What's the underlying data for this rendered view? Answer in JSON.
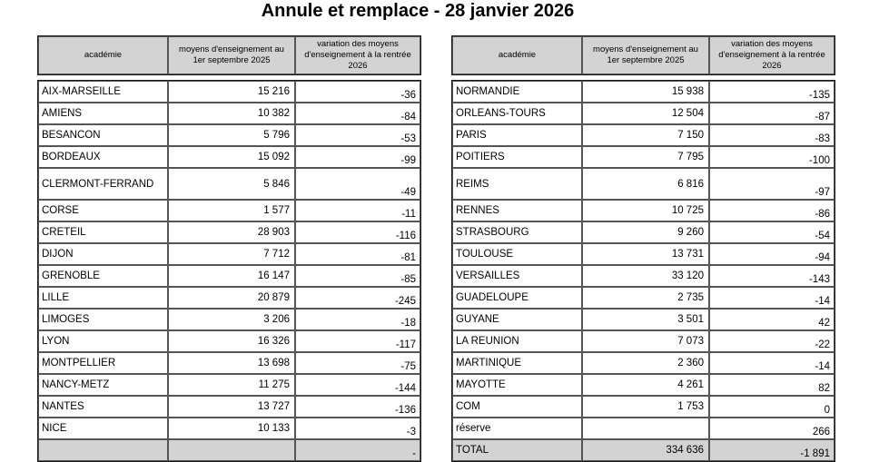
{
  "title": "Annule et remplace - 28 janvier 2026",
  "column_headers": {
    "academie": "académie",
    "moyens": "moyens d'enseignement au 1er septembre 2025",
    "variation": "variation des moyens d'enseignement à la rentrée 2026"
  },
  "left_table": {
    "rows": [
      {
        "academie": "AIX-MARSEILLE",
        "moyens": "15 216",
        "variation": "-36"
      },
      {
        "academie": "AMIENS",
        "moyens": "10 382",
        "variation": "-84"
      },
      {
        "academie": "BESANCON",
        "moyens": "5 796",
        "variation": "-53"
      },
      {
        "academie": "BORDEAUX",
        "moyens": "15 092",
        "variation": "-99"
      },
      {
        "academie": "CLERMONT-FERRAND",
        "moyens": "5 846",
        "variation": "-49",
        "tall": true
      },
      {
        "academie": "CORSE",
        "moyens": "1 577",
        "variation": "-11"
      },
      {
        "academie": "CRETEIL",
        "moyens": "28 903",
        "variation": "-116"
      },
      {
        "academie": "DIJON",
        "moyens": "7 712",
        "variation": "-81"
      },
      {
        "academie": "GRENOBLE",
        "moyens": "16 147",
        "variation": "-85"
      },
      {
        "academie": "LILLE",
        "moyens": "20 879",
        "variation": "-245"
      },
      {
        "academie": "LIMOGES",
        "moyens": "3 206",
        "variation": "-18"
      },
      {
        "academie": "LYON",
        "moyens": "16 326",
        "variation": "-117"
      },
      {
        "academie": "MONTPELLIER",
        "moyens": "13 698",
        "variation": "-75"
      },
      {
        "academie": "NANCY-METZ",
        "moyens": "11 275",
        "variation": "-144"
      },
      {
        "academie": "NANTES",
        "moyens": "13 727",
        "variation": "-136"
      },
      {
        "academie": "NICE",
        "moyens": "10 133",
        "variation": "-3"
      },
      {
        "academie": "",
        "moyens": "",
        "variation": "-",
        "gray": true
      }
    ]
  },
  "right_table": {
    "rows": [
      {
        "academie": "NORMANDIE",
        "moyens": "15 938",
        "variation": "-135"
      },
      {
        "academie": "ORLEANS-TOURS",
        "moyens": "12 504",
        "variation": "-87"
      },
      {
        "academie": "PARIS",
        "moyens": "7 150",
        "variation": "-83"
      },
      {
        "academie": "POITIERS",
        "moyens": "7 795",
        "variation": "-100"
      },
      {
        "academie": "REIMS",
        "moyens": "6 816",
        "variation": "-97",
        "tall": true
      },
      {
        "academie": "RENNES",
        "moyens": "10 725",
        "variation": "-86"
      },
      {
        "academie": "STRASBOURG",
        "moyens": "9 260",
        "variation": "-54"
      },
      {
        "academie": "TOULOUSE",
        "moyens": "13 731",
        "variation": "-94"
      },
      {
        "academie": "VERSAILLES",
        "moyens": "33 120",
        "variation": "-143"
      },
      {
        "academie": "GUADELOUPE",
        "moyens": "2 735",
        "variation": "-14"
      },
      {
        "academie": "GUYANE",
        "moyens": "3 501",
        "variation": "42"
      },
      {
        "academie": "LA REUNION",
        "moyens": "7 073",
        "variation": "-22"
      },
      {
        "academie": "MARTINIQUE",
        "moyens": "2 360",
        "variation": "-14"
      },
      {
        "academie": "MAYOTTE",
        "moyens": "4 261",
        "variation": "82"
      },
      {
        "academie": "COM",
        "moyens": "1 753",
        "variation": "0"
      },
      {
        "academie": "réserve",
        "moyens": "",
        "variation": "266"
      },
      {
        "academie": "TOTAL",
        "moyens": "334 636",
        "variation": "-1 891",
        "gray": true
      }
    ]
  }
}
